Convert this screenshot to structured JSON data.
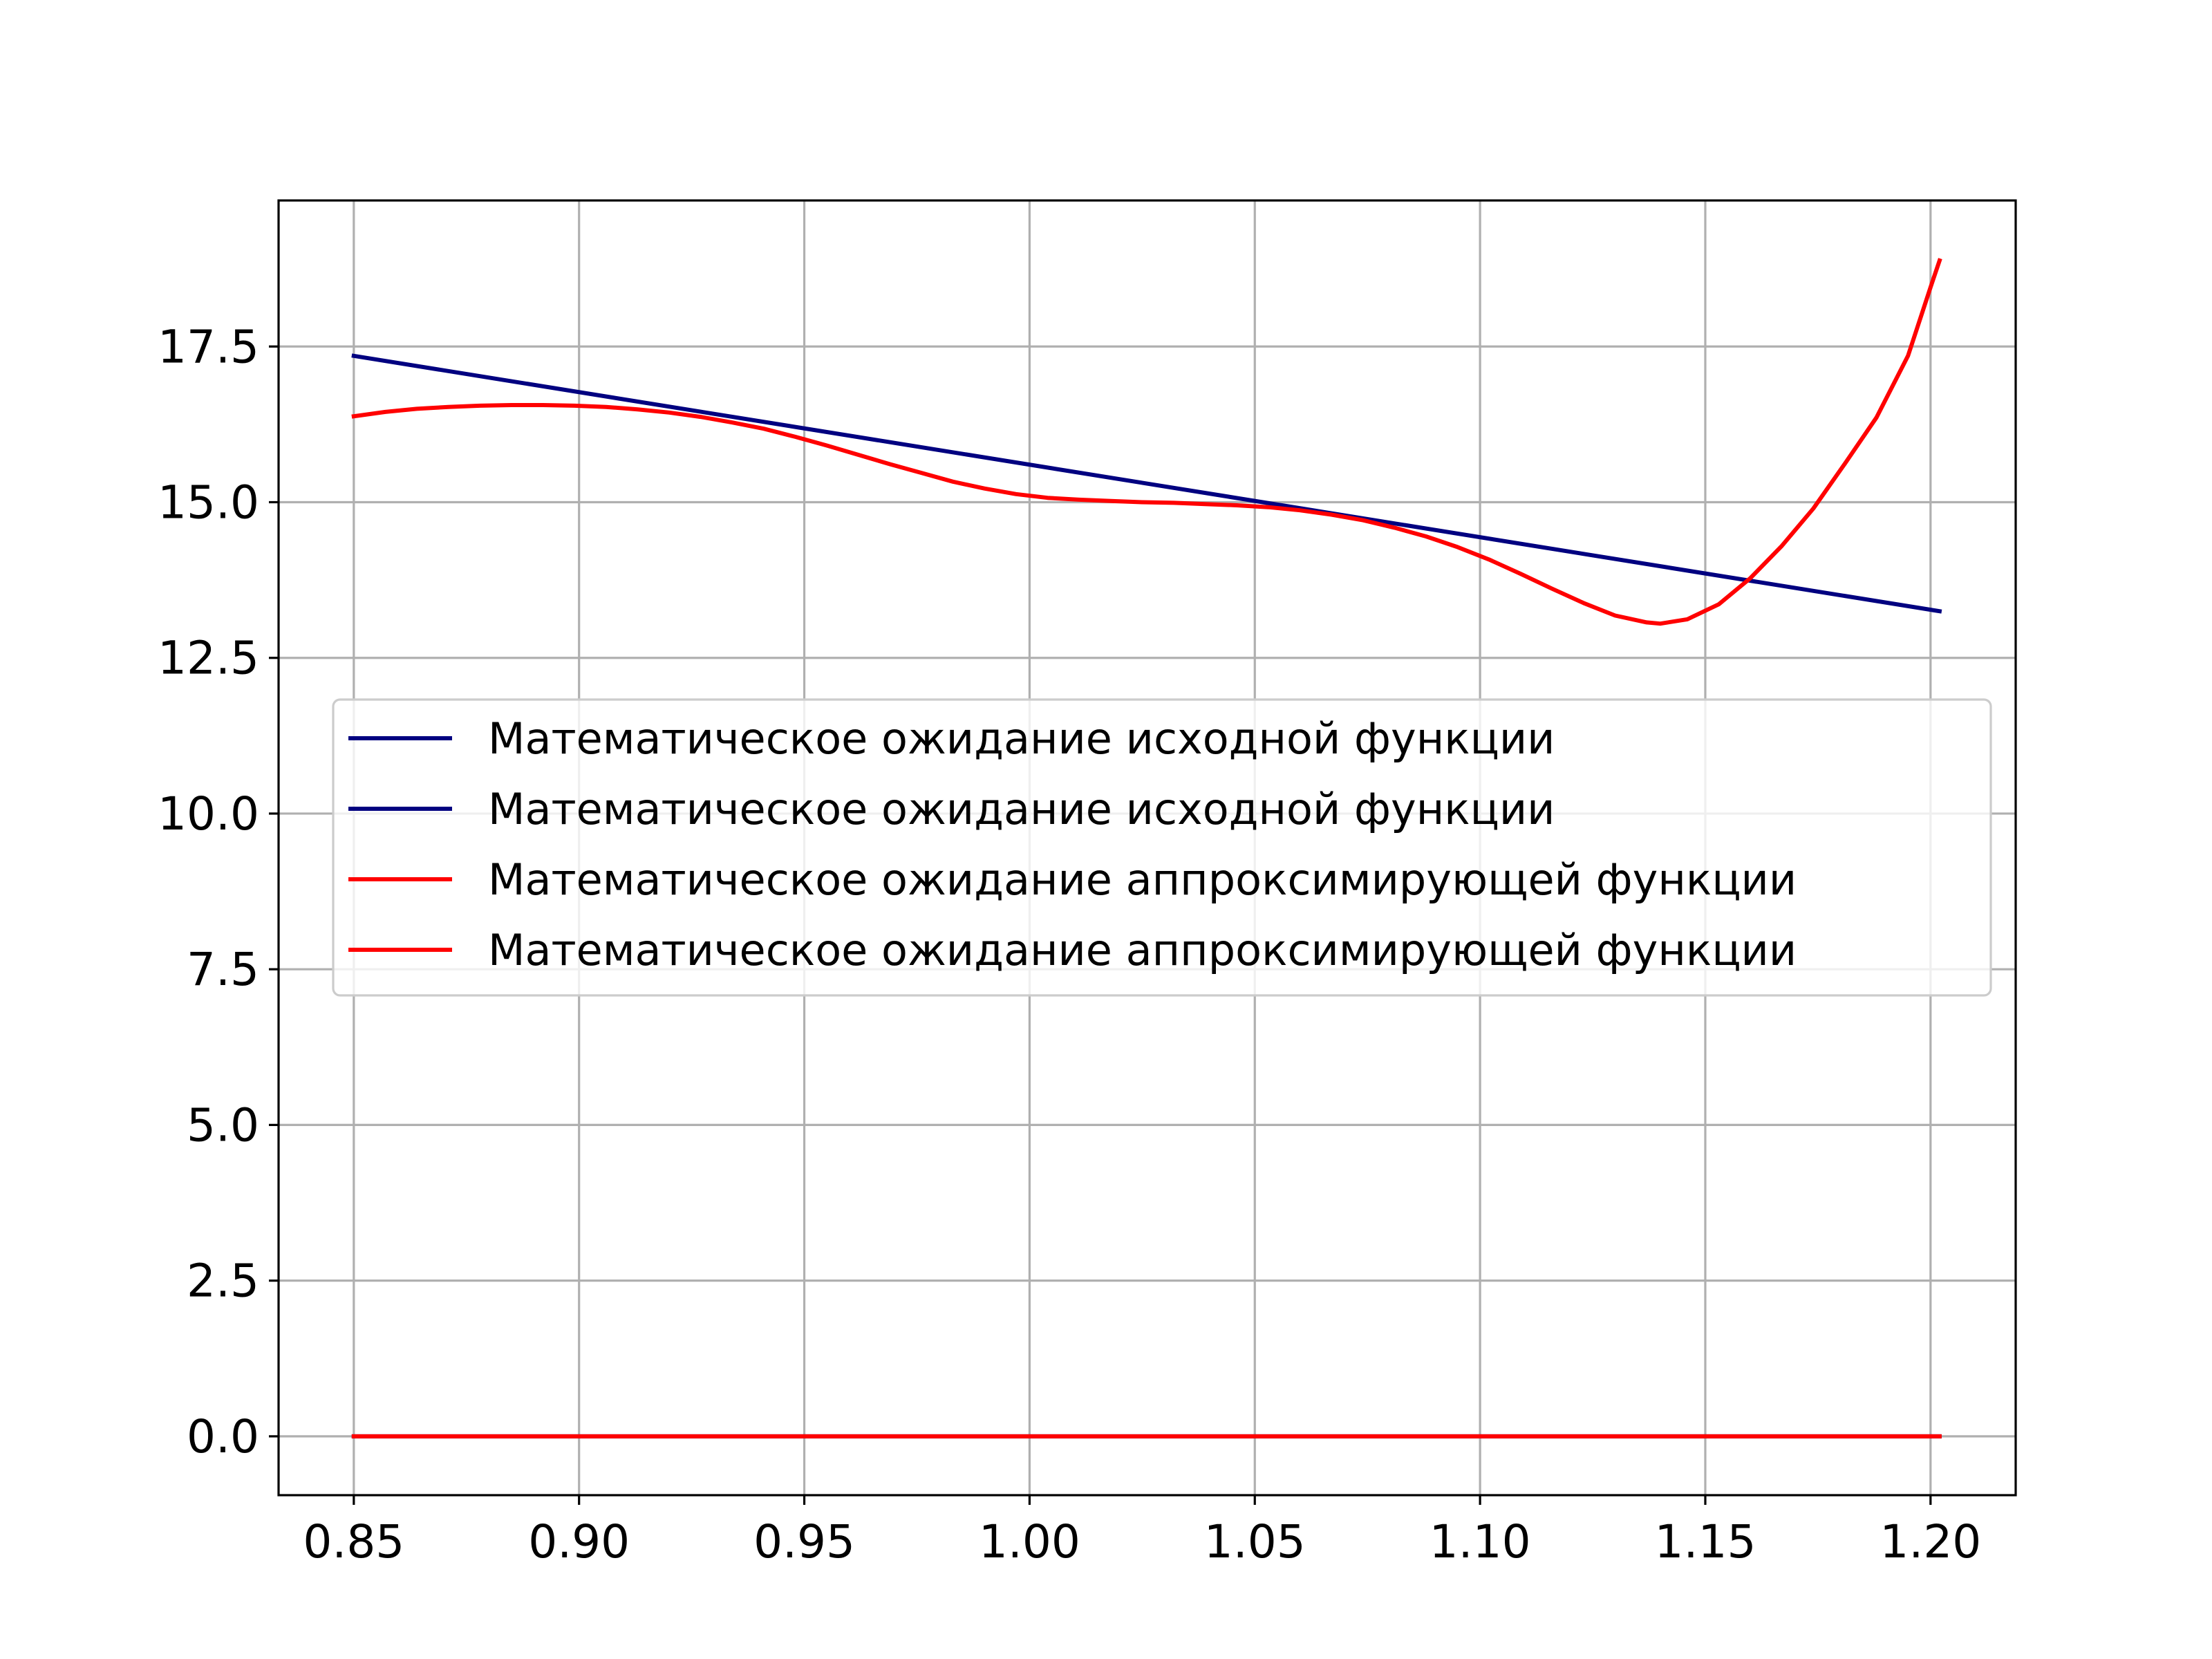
{
  "chart_data": {
    "type": "line",
    "title": "",
    "xlabel": "",
    "ylabel": "",
    "xlim": [
      0.8333,
      1.2189
    ],
    "ylim": [
      -0.945,
      19.845
    ],
    "grid": true,
    "legend_position": "center-left",
    "x_ticks": [
      "0.85",
      "0.90",
      "0.95",
      "1.00",
      "1.05",
      "1.10",
      "1.15",
      "1.20"
    ],
    "x_tick_values": [
      0.85,
      0.9,
      0.95,
      1.0,
      1.05,
      1.1,
      1.15,
      1.2
    ],
    "y_ticks": [
      "0.0",
      "2.5",
      "5.0",
      "7.5",
      "10.0",
      "12.5",
      "15.0",
      "17.5"
    ],
    "y_tick_values": [
      0.0,
      2.5,
      5.0,
      7.5,
      10.0,
      12.5,
      15.0,
      17.5
    ],
    "series": [
      {
        "name": "Математическое ожидание исходной функции",
        "color": "#000080",
        "points": [
          [
            0.85,
            17.35
          ],
          [
            1.202,
            13.25
          ]
        ]
      },
      {
        "name": "Математическое ожидание исходной функции",
        "color": "#000080",
        "points": [
          [
            0.85,
            0.0
          ],
          [
            1.202,
            0.0
          ]
        ]
      },
      {
        "name": "Математическое ожидание аппроксимирующей функции",
        "color": "#ff0000",
        "points": [
          [
            0.85,
            16.38
          ],
          [
            0.857,
            16.45
          ],
          [
            0.864,
            16.5
          ],
          [
            0.871,
            16.53
          ],
          [
            0.878,
            16.55
          ],
          [
            0.885,
            16.56
          ],
          [
            0.892,
            16.56
          ],
          [
            0.899,
            16.55
          ],
          [
            0.906,
            16.53
          ],
          [
            0.913,
            16.49
          ],
          [
            0.92,
            16.44
          ],
          [
            0.927,
            16.37
          ],
          [
            0.934,
            16.28
          ],
          [
            0.941,
            16.18
          ],
          [
            0.948,
            16.05
          ],
          [
            0.955,
            15.91
          ],
          [
            0.962,
            15.76
          ],
          [
            0.969,
            15.61
          ],
          [
            0.976,
            15.47
          ],
          [
            0.983,
            15.33
          ],
          [
            0.99,
            15.22
          ],
          [
            0.997,
            15.13
          ],
          [
            1.004,
            15.07
          ],
          [
            1.011,
            15.04
          ],
          [
            1.018,
            15.02
          ],
          [
            1.025,
            15.0
          ],
          [
            1.032,
            14.99
          ],
          [
            1.039,
            14.97
          ],
          [
            1.046,
            14.95
          ],
          [
            1.053,
            14.92
          ],
          [
            1.06,
            14.87
          ],
          [
            1.067,
            14.8
          ],
          [
            1.074,
            14.71
          ],
          [
            1.081,
            14.59
          ],
          [
            1.088,
            14.45
          ],
          [
            1.095,
            14.28
          ],
          [
            1.102,
            14.08
          ],
          [
            1.109,
            13.85
          ],
          [
            1.116,
            13.61
          ],
          [
            1.123,
            13.38
          ],
          [
            1.13,
            13.18
          ],
          [
            1.137,
            13.07
          ],
          [
            1.14,
            13.05
          ],
          [
            1.146,
            13.12
          ],
          [
            1.153,
            13.36
          ],
          [
            1.16,
            13.78
          ],
          [
            1.167,
            14.3
          ],
          [
            1.174,
            14.9
          ],
          [
            1.181,
            15.62
          ],
          [
            1.188,
            16.36
          ],
          [
            1.195,
            17.35
          ],
          [
            1.2,
            18.45
          ],
          [
            1.202,
            18.88
          ]
        ]
      },
      {
        "name": "Математическое ожидание аппроксимирующей функции",
        "color": "#ff0000",
        "points": [
          [
            0.85,
            0.0
          ],
          [
            1.202,
            0.0
          ]
        ]
      }
    ]
  }
}
